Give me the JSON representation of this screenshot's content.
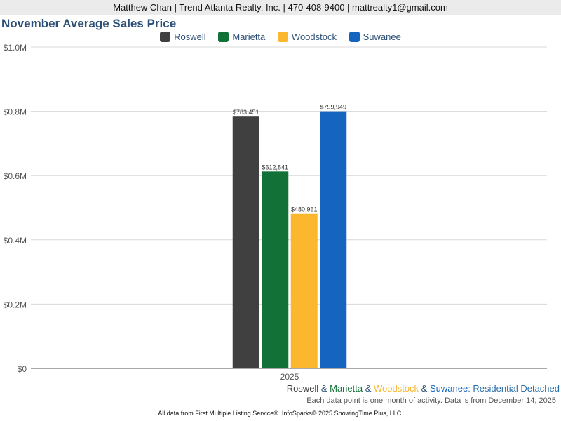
{
  "header": "Matthew Chan | Trend Atlanta Realty, Inc. | 470-408-9400 | mattrealty1@gmail.com",
  "chart_data": {
    "type": "bar",
    "title": "November Average Sales Price",
    "categories": [
      "2025"
    ],
    "series": [
      {
        "name": "Roswell",
        "values": [
          783451
        ],
        "label": "$783,451",
        "color": "#404040"
      },
      {
        "name": "Marietta",
        "values": [
          612841
        ],
        "label": "$612,841",
        "color": "#127137"
      },
      {
        "name": "Woodstock",
        "values": [
          480961
        ],
        "label": "$480,961",
        "color": "#fbb72e"
      },
      {
        "name": "Suwanee",
        "values": [
          799949
        ],
        "label": "$799,949",
        "color": "#1565c0"
      }
    ],
    "ylim": [
      0,
      1000000
    ],
    "yticks": [
      0,
      200000,
      400000,
      600000,
      800000,
      1000000
    ],
    "ytick_labels": [
      "$0",
      "$0.2M",
      "$0.4M",
      "$0.6M",
      "$0.8M",
      "$1.0M"
    ],
    "legend": "top-center",
    "grid": true
  },
  "subtitle": {
    "parts": [
      "Roswell",
      " & ",
      "Marietta",
      " & ",
      "Woodstock",
      " & ",
      "Suwanee",
      ": Residential Detached"
    ]
  },
  "note": "Each data point is one month of activity. Data is from December 14, 2025.",
  "footer": "All data from First Multiple Listing Service®. InfoSparks© 2025 ShowingTime Plus, LLC."
}
